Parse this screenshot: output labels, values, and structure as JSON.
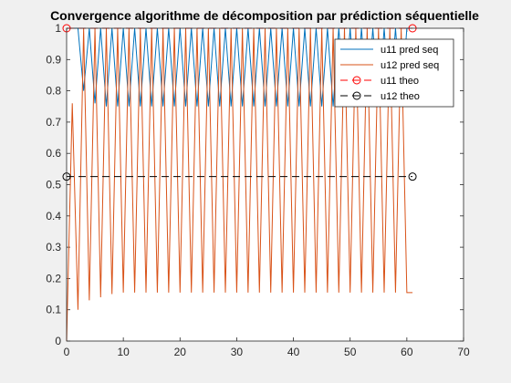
{
  "chart_data": {
    "type": "line",
    "title": "Convergence algorithme de décomposition par prédiction séquentielle",
    "xlabel": "",
    "ylabel": "",
    "xlim": [
      0,
      70
    ],
    "ylim": [
      0,
      1
    ],
    "xticks": [
      0,
      10,
      20,
      30,
      40,
      50,
      60,
      70
    ],
    "yticks": [
      0,
      0.1,
      0.2,
      0.3,
      0.4,
      0.5,
      0.6,
      0.7,
      0.8,
      0.9,
      1
    ],
    "xtick_labels": [
      "0",
      "10",
      "20",
      "30",
      "40",
      "50",
      "60",
      "70"
    ],
    "ytick_labels": [
      "0",
      "0.1",
      "0.2",
      "0.3",
      "0.4",
      "0.5",
      "0.6",
      "0.7",
      "0.8",
      "0.9",
      "1"
    ],
    "grid": false,
    "legend_position": "top-right",
    "series": [
      {
        "name": "u11 pred seq",
        "color": "#0072bd",
        "style": "solid",
        "marker": "none",
        "x": [
          0,
          1,
          2,
          3,
          4,
          5,
          6,
          7,
          8,
          9,
          10,
          11,
          12,
          13,
          14,
          15,
          16,
          17,
          18,
          19,
          20,
          21,
          22,
          23,
          24,
          25,
          26,
          27,
          28,
          29,
          30,
          31,
          32,
          33,
          34,
          35,
          36,
          37,
          38,
          39,
          40,
          41,
          42,
          43,
          44,
          45,
          46,
          47,
          48,
          49,
          50,
          51,
          52,
          53,
          54,
          55,
          56,
          57,
          58,
          59,
          60,
          61
        ],
        "y": [
          1,
          1,
          1,
          0.8,
          1,
          0.76,
          1,
          0.75,
          1,
          0.75,
          1,
          0.75,
          1,
          0.75,
          1,
          0.75,
          1,
          0.75,
          1,
          0.75,
          1,
          0.75,
          1,
          0.75,
          1,
          0.75,
          1,
          0.75,
          1,
          0.75,
          1,
          0.75,
          1,
          0.75,
          1,
          0.75,
          1,
          0.75,
          1,
          0.75,
          1,
          0.75,
          1,
          0.75,
          1,
          0.75,
          1,
          0.75,
          1,
          0.75,
          1,
          0.75,
          1,
          0.75,
          1,
          0.75,
          1,
          0.75,
          1,
          0.75,
          1,
          1
        ]
      },
      {
        "name": "u12 pred seq",
        "color": "#d95319",
        "style": "solid",
        "marker": "none",
        "x": [
          0,
          1,
          2,
          3,
          4,
          5,
          6,
          7,
          8,
          9,
          10,
          11,
          12,
          13,
          14,
          15,
          16,
          17,
          18,
          19,
          20,
          21,
          22,
          23,
          24,
          25,
          26,
          27,
          28,
          29,
          30,
          31,
          32,
          33,
          34,
          35,
          36,
          37,
          38,
          39,
          40,
          41,
          42,
          43,
          44,
          45,
          46,
          47,
          48,
          49,
          50,
          51,
          52,
          53,
          54,
          55,
          56,
          57,
          58,
          59,
          60,
          61
        ],
        "y": [
          0,
          0.76,
          0.1,
          1,
          0.13,
          1,
          0.14,
          1,
          0.15,
          1,
          0.155,
          1,
          0.155,
          1,
          0.155,
          1,
          0.155,
          1,
          0.155,
          1,
          0.155,
          1,
          0.155,
          1,
          0.155,
          1,
          0.155,
          1,
          0.155,
          1,
          0.155,
          1,
          0.155,
          1,
          0.155,
          1,
          0.155,
          1,
          0.155,
          1,
          0.155,
          1,
          0.155,
          1,
          0.155,
          1,
          0.155,
          1,
          0.155,
          1,
          0.155,
          1,
          0.155,
          1,
          0.155,
          1,
          0.155,
          1,
          0.155,
          1,
          0.155,
          0.155
        ]
      },
      {
        "name": "u11 theo",
        "color": "#ff0000",
        "style": "dashed",
        "marker": "circle",
        "x": [
          0,
          61
        ],
        "y": [
          1,
          1
        ]
      },
      {
        "name": "u12 theo",
        "color": "#000000",
        "style": "dashed",
        "marker": "circle",
        "x": [
          0,
          61
        ],
        "y": [
          0.5257,
          0.5257
        ]
      }
    ]
  }
}
